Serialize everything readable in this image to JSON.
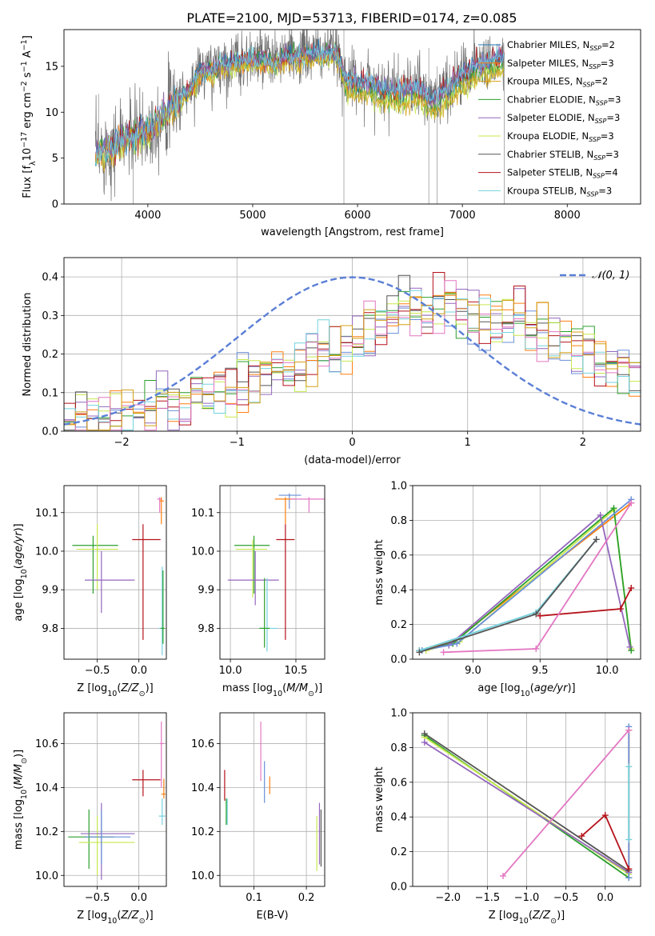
{
  "page_title": "PLATE=2100, MJD=53713, FIBERID=0174, z=0.085",
  "colors": {
    "m1": "#1f77b4",
    "m2": "#ff7f0e",
    "m3": "#d4a017",
    "m4": "#2ca02c",
    "m5": "#9467bd",
    "m6": "#c7e84f",
    "m7": "#555555",
    "m8": "#b5121b",
    "m9": "#73d2de",
    "extra_blue": "#6a8fd8",
    "extra_pink": "#e377c2",
    "grid": "#b0b0b0",
    "gauss": "#5b7fd6"
  },
  "chart_data": [
    {
      "id": "spectrum",
      "type": "line",
      "xlabel": "wavelength [Angstrom, rest frame]",
      "ylabel": "Flux [f_λ10^-17 erg cm^-2 s^-1 A^-1]",
      "xlim": [
        3200,
        8700
      ],
      "ylim": [
        0,
        19
      ],
      "xticks": [
        4000,
        5000,
        6000,
        7000,
        8000
      ],
      "yticks": [
        0,
        5,
        10,
        15
      ],
      "grid": false,
      "legend_loc": "right",
      "legend": [
        {
          "label": "Chabrier MILES, N_SSP=2",
          "color_key": "m1"
        },
        {
          "label": "Salpeter MILES, N_SSP=3",
          "color_key": "m2"
        },
        {
          "label": "Kroupa MILES, N_SSP=2",
          "color_key": "m3"
        },
        {
          "label": "Chabrier ELODIE, N_SSP=3",
          "color_key": "m4"
        },
        {
          "label": "Salpeter ELODIE, N_SSP=3",
          "color_key": "m5"
        },
        {
          "label": "Kroupa ELODIE, N_SSP=3",
          "color_key": "m6"
        },
        {
          "label": "Chabrier STELIB, N_SSP=3",
          "color_key": "m7"
        },
        {
          "label": "Salpeter STELIB, N_SSP=4",
          "color_key": "m8"
        },
        {
          "label": "Kroupa STELIB, N_SSP=3",
          "color_key": "m9"
        }
      ],
      "continuum": [
        [
          3500,
          5.5
        ],
        [
          3600,
          6.0
        ],
        [
          3700,
          6.5
        ],
        [
          3800,
          7.3
        ],
        [
          3900,
          7.6
        ],
        [
          4000,
          8.0
        ],
        [
          4100,
          9.3
        ],
        [
          4200,
          10.5
        ],
        [
          4300,
          11.4
        ],
        [
          4400,
          12.5
        ],
        [
          4500,
          14.4
        ],
        [
          4600,
          14.6
        ],
        [
          4700,
          15.2
        ],
        [
          4800,
          15.4
        ],
        [
          4900,
          15.6
        ],
        [
          5000,
          15.8
        ],
        [
          5100,
          15.9
        ],
        [
          5200,
          15.4
        ],
        [
          5300,
          16.1
        ],
        [
          5400,
          16.0
        ],
        [
          5500,
          16.3
        ],
        [
          5600,
          16.4
        ],
        [
          5700,
          16.5
        ],
        [
          5800,
          16.4
        ],
        [
          5900,
          13.6
        ],
        [
          6000,
          13.2
        ],
        [
          6100,
          13.4
        ],
        [
          6200,
          12.8
        ],
        [
          6300,
          12.5
        ],
        [
          6400,
          12.4
        ],
        [
          6500,
          12.6
        ],
        [
          6600,
          12.7
        ],
        [
          6700,
          11.2
        ],
        [
          6800,
          12.2
        ],
        [
          6900,
          13.0
        ],
        [
          7000,
          14.2
        ],
        [
          7100,
          15.0
        ],
        [
          7200,
          15.6
        ],
        [
          7300,
          15.8
        ],
        [
          7400,
          16.0
        ]
      ],
      "data_extent": [
        3500,
        7400
      ]
    },
    {
      "id": "residuals",
      "type": "step-histogram",
      "xlabel": "(data-model)/error",
      "ylabel": "Normed distribution",
      "xlim": [
        -2.5,
        2.5
      ],
      "ylim": [
        0,
        0.45
      ],
      "xticks": [
        -2,
        -1,
        0,
        1,
        2
      ],
      "yticks": [
        0.0,
        0.1,
        0.2,
        0.3,
        0.4
      ],
      "grid": true,
      "legend_loc": "upper right",
      "legend": [
        {
          "label": "𝒩(0, 1)",
          "style": "dashed"
        }
      ],
      "bins": 50,
      "envelope": [
        [
          -2.5,
          0.02
        ],
        [
          -2.0,
          0.04
        ],
        [
          -1.5,
          0.07
        ],
        [
          -1.0,
          0.12
        ],
        [
          -0.5,
          0.16
        ],
        [
          0.0,
          0.23
        ],
        [
          0.3,
          0.3
        ],
        [
          0.6,
          0.33
        ],
        [
          1.0,
          0.3
        ],
        [
          1.4,
          0.28
        ],
        [
          1.8,
          0.24
        ],
        [
          2.2,
          0.18
        ],
        [
          2.5,
          0.15
        ]
      ]
    },
    {
      "id": "z_age",
      "type": "errorbar",
      "xlabel": "Z [log10(Z/Z⊙)]",
      "ylabel": "age  [log10(age/yr)]",
      "xlim": [
        -0.9,
        0.33
      ],
      "ylim": [
        9.72,
        10.17
      ],
      "xticks": [
        -0.5,
        0.0
      ],
      "yticks": [
        9.8,
        9.9,
        10.0,
        10.1
      ],
      "grid": true,
      "points": [
        {
          "c": "m4",
          "x": -0.55,
          "y": 10.015,
          "xl": -0.8,
          "xh": -0.25,
          "yl": 9.89,
          "yh": 10.04
        },
        {
          "c": "m6",
          "x": -0.5,
          "y": 10.005,
          "xl": -0.75,
          "xh": -0.25,
          "yl": 9.9,
          "yh": 10.07
        },
        {
          "c": "m5",
          "x": -0.45,
          "y": 9.925,
          "xl": -0.65,
          "xh": -0.05,
          "yl": 9.84,
          "yh": 10.0
        },
        {
          "c": "m8",
          "x": 0.05,
          "y": 10.03,
          "xl": -0.08,
          "xh": 0.26,
          "yl": 9.77,
          "yh": 10.07
        },
        {
          "c": "extra_pink",
          "x": 0.25,
          "y": 10.135,
          "xl": 0.22,
          "xh": 0.28,
          "yl": 10.1,
          "yh": 10.14
        },
        {
          "c": "m2",
          "x": 0.27,
          "y": 10.13,
          "xl": 0.25,
          "xh": 0.3,
          "yl": 10.07,
          "yh": 10.14
        },
        {
          "c": "m9",
          "x": 0.28,
          "y": 9.8,
          "xl": 0.24,
          "xh": 0.3,
          "yl": 9.73,
          "yh": 9.96
        },
        {
          "c": "m4",
          "x": 0.29,
          "y": 9.8,
          "xl": 0.26,
          "xh": 0.31,
          "yl": 9.76,
          "yh": 9.95
        }
      ]
    },
    {
      "id": "mass_age",
      "type": "errorbar",
      "xlabel": "mass [log10(M/M⊙)]",
      "ylabel": "",
      "xlim": [
        9.92,
        10.72
      ],
      "ylim": [
        9.72,
        10.17
      ],
      "xticks": [
        10.0,
        10.5
      ],
      "yticks": [
        9.8,
        9.9,
        10.0,
        10.1
      ],
      "grid": true,
      "points": [
        {
          "c": "m4",
          "x": 10.18,
          "y": 10.015,
          "xl": 10.03,
          "xh": 10.3,
          "yl": 9.89,
          "yh": 10.04
        },
        {
          "c": "m6",
          "x": 10.17,
          "y": 10.005,
          "xl": 10.04,
          "xh": 10.28,
          "yl": 9.88,
          "yh": 10.03
        },
        {
          "c": "m5",
          "x": 10.19,
          "y": 9.925,
          "xl": 9.98,
          "xh": 10.37,
          "yl": 9.86,
          "yh": 10.0
        },
        {
          "c": "m9",
          "x": 10.28,
          "y": 9.8,
          "xl": 10.22,
          "xh": 10.36,
          "yl": 9.74,
          "yh": 9.93
        },
        {
          "c": "m4",
          "x": 10.26,
          "y": 9.8,
          "xl": 10.22,
          "xh": 10.3,
          "yl": 9.75,
          "yh": 9.93
        },
        {
          "c": "m8",
          "x": 10.42,
          "y": 10.03,
          "xl": 10.35,
          "xh": 10.49,
          "yl": 9.77,
          "yh": 10.07
        },
        {
          "c": "extra_blue",
          "x": 10.45,
          "y": 10.145,
          "xl": 10.37,
          "xh": 10.54,
          "yl": 10.11,
          "yh": 10.15
        },
        {
          "c": "m2",
          "x": 10.42,
          "y": 10.135,
          "xl": 10.34,
          "xh": 10.5,
          "yl": 10.07,
          "yh": 10.14
        },
        {
          "c": "extra_pink",
          "x": 10.6,
          "y": 10.135,
          "xl": 10.46,
          "xh": 10.74,
          "yl": 10.1,
          "yh": 10.14
        }
      ]
    },
    {
      "id": "age_weight",
      "type": "line",
      "xlabel": "age  [log10(age/yr)]",
      "ylabel": "mass weight",
      "xlim": [
        8.55,
        10.25
      ],
      "ylim": [
        0,
        1
      ],
      "xticks": [
        9.0,
        9.5,
        10.0
      ],
      "yticks": [
        0.0,
        0.2,
        0.4,
        0.6,
        0.8,
        1.0
      ],
      "grid": true,
      "series": [
        {
          "c": "m2",
          "x": [
            8.6,
            8.85,
            10.18
          ],
          "y": [
            0.05,
            0.1,
            0.9
          ]
        },
        {
          "c": "m6",
          "x": [
            8.65,
            8.9,
            10.05,
            10.18
          ],
          "y": [
            0.05,
            0.1,
            0.86,
            0.06
          ]
        },
        {
          "c": "m4",
          "x": [
            8.62,
            8.85,
            10.05,
            10.18
          ],
          "y": [
            0.05,
            0.09,
            0.87,
            0.05
          ]
        },
        {
          "c": "m5",
          "x": [
            8.6,
            8.82,
            9.95,
            10.17
          ],
          "y": [
            0.05,
            0.08,
            0.83,
            0.07
          ]
        },
        {
          "c": "extra_blue",
          "x": [
            8.62,
            8.88,
            10.18
          ],
          "y": [
            0.05,
            0.09,
            0.92
          ]
        },
        {
          "c": "m9",
          "x": [
            8.6,
            9.47,
            9.92
          ],
          "y": [
            0.05,
            0.27,
            0.69
          ]
        },
        {
          "c": "m7",
          "x": [
            8.6,
            9.47,
            9.92
          ],
          "y": [
            0.04,
            0.26,
            0.69
          ]
        },
        {
          "c": "m8",
          "x": [
            9.5,
            10.1,
            10.18
          ],
          "y": [
            0.25,
            0.29,
            0.41
          ]
        },
        {
          "c": "extra_pink",
          "x": [
            8.78,
            9.47,
            10.18
          ],
          "y": [
            0.04,
            0.06,
            0.9
          ]
        }
      ]
    },
    {
      "id": "z_mass",
      "type": "errorbar",
      "xlabel": "Z [log10(Z/Z⊙)]",
      "ylabel": "mass [log10(M/M⊙)]",
      "xlim": [
        -0.9,
        0.33
      ],
      "ylim": [
        9.95,
        10.74
      ],
      "xticks": [
        -0.5,
        0.0
      ],
      "yticks": [
        10.0,
        10.2,
        10.4,
        10.6
      ],
      "grid": true,
      "points": [
        {
          "c": "m4",
          "x": -0.6,
          "y": 10.175,
          "xl": -0.85,
          "xh": -0.3,
          "yl": 10.03,
          "yh": 10.3
        },
        {
          "c": "m6",
          "x": -0.5,
          "y": 10.15,
          "xl": -0.72,
          "xh": -0.05,
          "yl": 10.0,
          "yh": 10.27
        },
        {
          "c": "m5",
          "x": -0.45,
          "y": 10.19,
          "xl": -0.7,
          "xh": -0.05,
          "yl": 9.98,
          "yh": 10.33
        },
        {
          "c": "extra_blue",
          "x": -0.45,
          "y": 10.175,
          "xl": -0.65,
          "xh": -0.1,
          "yl": 10.05,
          "yh": 10.3
        },
        {
          "c": "m8",
          "x": 0.05,
          "y": 10.435,
          "xl": -0.08,
          "xh": 0.26,
          "yl": 10.36,
          "yh": 10.48
        },
        {
          "c": "extra_pink",
          "x": 0.27,
          "y": 10.6,
          "xl": 0.25,
          "xh": 0.3,
          "yl": 10.4,
          "yh": 10.7
        },
        {
          "c": "m2",
          "x": 0.3,
          "y": 10.37,
          "xl": 0.27,
          "xh": 0.32,
          "yl": 10.35,
          "yh": 10.44
        },
        {
          "c": "m9",
          "x": 0.28,
          "y": 10.27,
          "xl": 0.24,
          "xh": 0.32,
          "yl": 10.23,
          "yh": 10.35
        }
      ]
    },
    {
      "id": "ebv_mass",
      "type": "errorbar-vertical",
      "xlabel": "E(B-V)",
      "ylabel": "",
      "xlim": [
        0.035,
        0.235
      ],
      "ylim": [
        9.95,
        10.74
      ],
      "xticks": [
        0.1,
        0.2
      ],
      "yticks": [
        10.0,
        10.2,
        10.4,
        10.6
      ],
      "grid": true,
      "points": [
        {
          "c": "m8",
          "x": 0.044,
          "yl": 10.34,
          "yh": 10.48
        },
        {
          "c": "m4",
          "x": 0.047,
          "yl": 10.23,
          "yh": 10.35
        },
        {
          "c": "m9",
          "x": 0.049,
          "yl": 10.23,
          "yh": 10.35
        },
        {
          "c": "extra_pink",
          "x": 0.113,
          "yl": 10.43,
          "yh": 10.7
        },
        {
          "c": "extra_blue",
          "x": 0.12,
          "yl": 10.33,
          "yh": 10.52
        },
        {
          "c": "m2",
          "x": 0.13,
          "yl": 10.37,
          "yh": 10.45
        },
        {
          "c": "m6",
          "x": 0.22,
          "yl": 10.02,
          "yh": 10.27
        },
        {
          "c": "m5",
          "x": 0.225,
          "yl": 10.05,
          "yh": 10.33
        },
        {
          "c": "m7",
          "x": 0.228,
          "yl": 10.04,
          "yh": 10.3
        }
      ]
    },
    {
      "id": "z_weight",
      "type": "line",
      "xlabel": "Z [log10(Z/Z⊙)]",
      "ylabel": "mass weight",
      "xlim": [
        -2.45,
        0.45
      ],
      "ylim": [
        0,
        1
      ],
      "xticks": [
        -2.0,
        -1.5,
        -1.0,
        -0.5,
        0.0
      ],
      "yticks": [
        0.0,
        0.2,
        0.4,
        0.6,
        0.8,
        1.0
      ],
      "grid": true,
      "series": [
        {
          "c": "m4",
          "x": [
            -2.3,
            0.3
          ],
          "y": [
            0.87,
            0.05
          ]
        },
        {
          "c": "m6",
          "x": [
            -2.3,
            0.3
          ],
          "y": [
            0.86,
            0.07
          ]
        },
        {
          "c": "m5",
          "x": [
            -2.3,
            0.3
          ],
          "y": [
            0.83,
            0.08
          ]
        },
        {
          "c": "m7",
          "x": [
            -2.3,
            0.3
          ],
          "y": [
            0.88,
            0.09
          ]
        },
        {
          "c": "m2",
          "x": [
            0.3,
            0.3
          ],
          "y": [
            0.1,
            0.9
          ]
        },
        {
          "c": "extra_blue",
          "x": [
            0.3,
            0.3
          ],
          "y": [
            0.05,
            0.92
          ]
        },
        {
          "c": "m9",
          "x": [
            0.3,
            0.3
          ],
          "y": [
            0.27,
            0.69
          ]
        },
        {
          "c": "m8",
          "x": [
            -0.3,
            0.0,
            0.3
          ],
          "y": [
            0.29,
            0.41,
            0.1
          ]
        },
        {
          "c": "extra_pink",
          "x": [
            -1.3,
            0.3
          ],
          "y": [
            0.06,
            0.9
          ]
        }
      ]
    }
  ]
}
